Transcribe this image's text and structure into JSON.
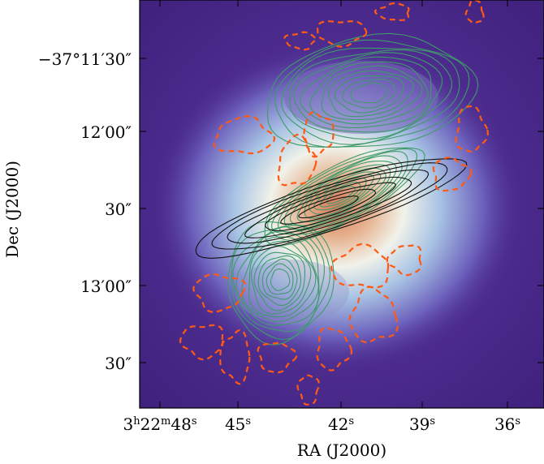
{
  "figure": {
    "ra_axis": {
      "label": "RA (J2000)",
      "ticks": [
        {
          "pre": "3",
          "sup1": "h",
          "mid": "22",
          "sup2": "m",
          "main": "48",
          "sup3": "s"
        },
        {
          "main": "45",
          "sup3": "s"
        },
        {
          "main": "42",
          "sup3": "s"
        },
        {
          "main": "39",
          "sup3": "s"
        },
        {
          "main": "36",
          "sup3": "s"
        }
      ]
    },
    "dec_axis": {
      "label": "Dec (J2000)",
      "ticks": [
        "−37°11′30″",
        "12′00″",
        "30″",
        "13′00″",
        "30″"
      ]
    },
    "colors": {
      "background_dark": "#4b2a8c",
      "halo": "#e6eef0",
      "core": "#d9795a",
      "contour_green": "#3f9b6b",
      "contour_black": "#111111",
      "contour_orange": "#ff5a14"
    }
  }
}
